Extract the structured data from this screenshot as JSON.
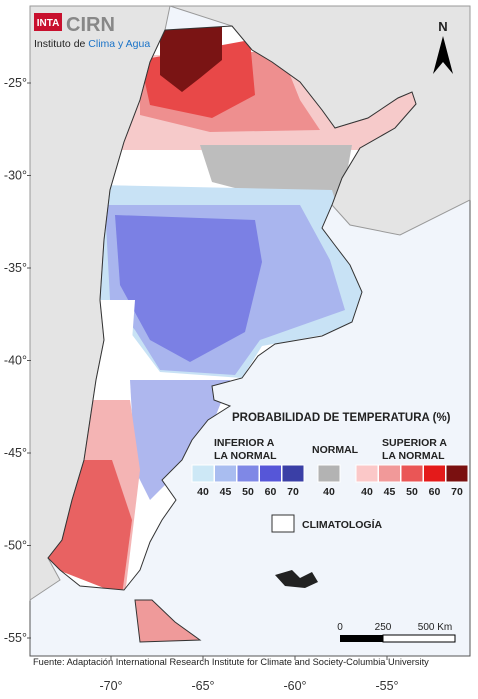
{
  "logo": {
    "badge": "INTA",
    "name": "CIRN",
    "subtitle_prefix": "Instituto de",
    "subtitle_highlight": "Clima y Agua"
  },
  "north": "N",
  "lat_labels": [
    "-25°",
    "-30°",
    "-35°",
    "-40°",
    "-45°",
    "-50°",
    "-55°"
  ],
  "lon_labels": [
    "-70°",
    "-65°",
    "-60°",
    "-55°"
  ],
  "legend": {
    "title": "PROBABILIDAD DE TEMPERATURA (%)",
    "below": {
      "line1": "INFERIOR A",
      "line2": "LA NORMAL",
      "levels": [
        "40",
        "45",
        "50",
        "60",
        "70"
      ]
    },
    "normal": {
      "label": "NORMAL",
      "levels": [
        "40"
      ]
    },
    "above": {
      "line1": "SUPERIOR A",
      "line2": "LA NORMAL",
      "levels": [
        "40",
        "45",
        "50",
        "60",
        "70"
      ]
    },
    "climatology": "CLIMATOLOGÍA"
  },
  "scale": {
    "labels": [
      "0",
      "250",
      "500 Km"
    ]
  },
  "source": "Fuente: Adaptación International Research Institute for Climate and Society-Columbia University"
}
